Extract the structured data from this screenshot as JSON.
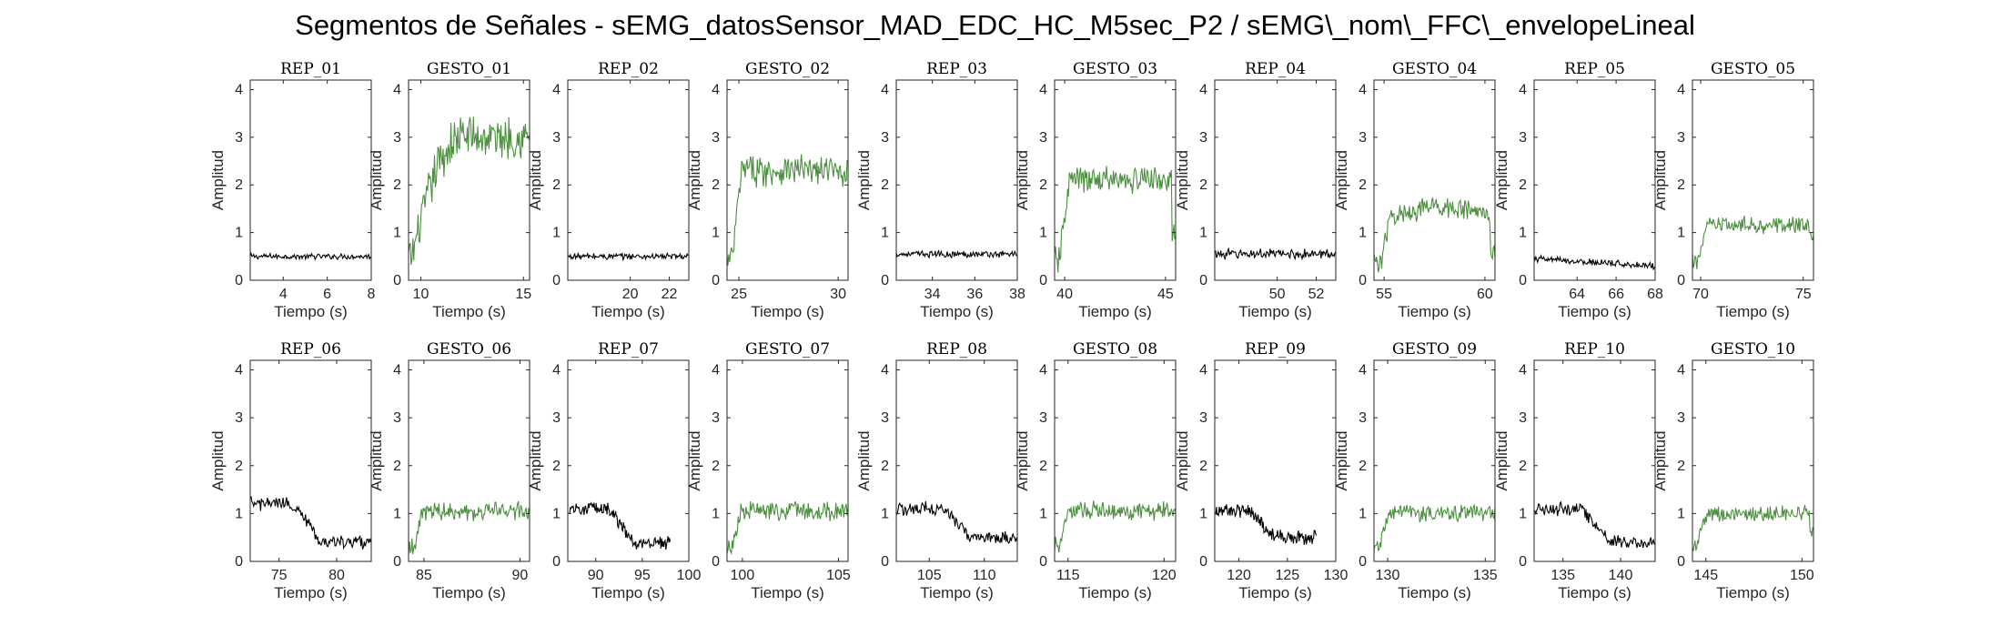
{
  "figure": {
    "title": "Segmentos de Señales - sEMG_datosSensor_MAD_EDC_HC_M5sec_P2 / sEMG\\_nom\\_FFC\\_envelopeLineal"
  },
  "colors": {
    "rep": "#000000",
    "gesto": "#4b8f3f",
    "axis": "#262626"
  },
  "chart_data": [
    {
      "type": "line",
      "title": "REP_01",
      "kind": "rep",
      "xlabel": "Tiempo (s)",
      "ylabel": "Amplitud",
      "xlim": [
        2.5,
        8
      ],
      "ylim": [
        0,
        4.2
      ],
      "xticks": [
        4,
        6,
        8
      ],
      "yticks": [
        0,
        1,
        2,
        3,
        4
      ],
      "shape": "flat",
      "level": 0.5,
      "noise": 0.05,
      "t0": 2.5,
      "t1": 8
    },
    {
      "type": "line",
      "title": "GESTO_01",
      "kind": "gesto",
      "xlabel": "Tiempo (s)",
      "ylabel": "Amplitud",
      "xlim": [
        9.4,
        15.3
      ],
      "ylim": [
        0,
        4.2
      ],
      "xticks": [
        10,
        15
      ],
      "yticks": [
        0,
        1,
        2,
        3,
        4
      ],
      "shape": "ramp",
      "level": 3.0,
      "start": 0.45,
      "noise": 0.4,
      "t0": 9.4,
      "t1": 15.3
    },
    {
      "type": "line",
      "title": "REP_02",
      "kind": "rep",
      "xlabel": "Tiempo (s)",
      "ylabel": "Amplitud",
      "xlim": [
        16.8,
        23
      ],
      "ylim": [
        0,
        4.2
      ],
      "xticks": [
        20,
        22
      ],
      "yticks": [
        0,
        1,
        2,
        3,
        4
      ],
      "shape": "flat",
      "level": 0.5,
      "noise": 0.06,
      "t0": 16.8,
      "t1": 23
    },
    {
      "type": "line",
      "title": "GESTO_02",
      "kind": "gesto",
      "xlabel": "Tiempo (s)",
      "ylabel": "Amplitud",
      "xlim": [
        24.4,
        30.5
      ],
      "ylim": [
        0,
        4.2
      ],
      "xticks": [
        25,
        30
      ],
      "yticks": [
        0,
        1,
        2,
        3,
        4
      ],
      "shape": "plateau",
      "level": 2.3,
      "start": 0.4,
      "noise": 0.28,
      "t0": 24.4,
      "t1": 30.5
    },
    {
      "type": "line",
      "title": "REP_03",
      "kind": "rep",
      "xlabel": "Tiempo (s)",
      "ylabel": "Amplitud",
      "xlim": [
        32.3,
        38
      ],
      "ylim": [
        0,
        4.2
      ],
      "xticks": [
        34,
        36,
        38
      ],
      "yticks": [
        0,
        1,
        2,
        3,
        4
      ],
      "shape": "flat",
      "level": 0.55,
      "noise": 0.06,
      "t0": 32.3,
      "t1": 38
    },
    {
      "type": "line",
      "title": "GESTO_03",
      "kind": "gesto",
      "xlabel": "Tiempo (s)",
      "ylabel": "Amplitud",
      "xlim": [
        39.5,
        45.5
      ],
      "ylim": [
        0,
        4.2
      ],
      "xticks": [
        40,
        45
      ],
      "yticks": [
        0,
        1,
        2,
        3,
        4
      ],
      "shape": "plateau",
      "level": 2.1,
      "start": 0.4,
      "end": 0.9,
      "noise": 0.25,
      "t0": 39.5,
      "t1": 45.5
    },
    {
      "type": "line",
      "title": "REP_04",
      "kind": "rep",
      "xlabel": "Tiempo (s)",
      "ylabel": "Amplitud",
      "xlim": [
        46.8,
        53
      ],
      "ylim": [
        0,
        4.2
      ],
      "xticks": [
        50,
        52
      ],
      "yticks": [
        0,
        1,
        2,
        3,
        4
      ],
      "shape": "flat",
      "level": 0.55,
      "noise": 0.09,
      "t0": 46.8,
      "t1": 53
    },
    {
      "type": "line",
      "title": "GESTO_04",
      "kind": "gesto",
      "xlabel": "Tiempo (s)",
      "ylabel": "Amplitud",
      "xlim": [
        54.5,
        60.5
      ],
      "ylim": [
        0,
        4.2
      ],
      "xticks": [
        55,
        60
      ],
      "yticks": [
        0,
        1,
        2,
        3,
        4
      ],
      "shape": "hump",
      "level": 1.55,
      "start": 0.4,
      "end": 0.6,
      "noise": 0.2,
      "t0": 54.5,
      "t1": 60.5
    },
    {
      "type": "line",
      "title": "REP_05",
      "kind": "rep",
      "xlabel": "Tiempo (s)",
      "ylabel": "Amplitud",
      "xlim": [
        61.8,
        68
      ],
      "ylim": [
        0,
        4.2
      ],
      "xticks": [
        64,
        66,
        68
      ],
      "yticks": [
        0,
        1,
        2,
        3,
        4
      ],
      "shape": "decay",
      "level": 0.45,
      "end": 0.3,
      "noise": 0.06,
      "t0": 61.8,
      "t1": 68
    },
    {
      "type": "line",
      "title": "GESTO_05",
      "kind": "gesto",
      "xlabel": "Tiempo (s)",
      "ylabel": "Amplitud",
      "xlim": [
        69.6,
        75.5
      ],
      "ylim": [
        0,
        4.2
      ],
      "xticks": [
        70,
        75
      ],
      "yticks": [
        0,
        1,
        2,
        3,
        4
      ],
      "shape": "plateau",
      "level": 1.15,
      "start": 0.4,
      "end": 0.9,
      "noise": 0.16,
      "t0": 69.6,
      "t1": 75.5
    },
    {
      "type": "line",
      "title": "REP_06",
      "kind": "rep",
      "xlabel": "Tiempo (s)",
      "ylabel": "Amplitud",
      "xlim": [
        72.5,
        83
      ],
      "ylim": [
        0,
        4.2
      ],
      "xticks": [
        75,
        80
      ],
      "yticks": [
        0,
        1,
        2,
        3,
        4
      ],
      "shape": "release",
      "level": 1.2,
      "end": 0.4,
      "drop": 76.2,
      "noise": 0.12,
      "t0": 72.5,
      "t1": 83
    },
    {
      "type": "line",
      "title": "GESTO_06",
      "kind": "gesto",
      "xlabel": "Tiempo (s)",
      "ylabel": "Amplitud",
      "xlim": [
        84.2,
        90.5
      ],
      "ylim": [
        0,
        4.2
      ],
      "xticks": [
        85,
        90
      ],
      "yticks": [
        0,
        1,
        2,
        3,
        4
      ],
      "shape": "plateau",
      "level": 1.05,
      "start": 0.3,
      "noise": 0.17,
      "t0": 84.2,
      "t1": 90.5
    },
    {
      "type": "line",
      "title": "REP_07",
      "kind": "rep",
      "xlabel": "Tiempo (s)",
      "ylabel": "Amplitud",
      "xlim": [
        87,
        100
      ],
      "ylim": [
        0,
        4.2
      ],
      "xticks": [
        90,
        95,
        100
      ],
      "yticks": [
        0,
        1,
        2,
        3,
        4
      ],
      "shape": "release",
      "level": 1.1,
      "end": 0.4,
      "drop": 91.5,
      "noise": 0.12,
      "t0": 87.2,
      "t1": 98
    },
    {
      "type": "line",
      "title": "GESTO_07",
      "kind": "gesto",
      "xlabel": "Tiempo (s)",
      "ylabel": "Amplitud",
      "xlim": [
        99.2,
        105.5
      ],
      "ylim": [
        0,
        4.2
      ],
      "xticks": [
        100,
        105
      ],
      "yticks": [
        0,
        1,
        2,
        3,
        4
      ],
      "shape": "plateau",
      "level": 1.05,
      "start": 0.3,
      "noise": 0.17,
      "t0": 99.2,
      "t1": 105.5
    },
    {
      "type": "line",
      "title": "REP_08",
      "kind": "rep",
      "xlabel": "Tiempo (s)",
      "ylabel": "Amplitud",
      "xlim": [
        102,
        113
      ],
      "ylim": [
        0,
        4.2
      ],
      "xticks": [
        105,
        110
      ],
      "yticks": [
        0,
        1,
        2,
        3,
        4
      ],
      "shape": "release",
      "level": 1.1,
      "end": 0.5,
      "drop": 106.3,
      "noise": 0.12,
      "t0": 102,
      "t1": 113
    },
    {
      "type": "line",
      "title": "GESTO_08",
      "kind": "gesto",
      "xlabel": "Tiempo (s)",
      "ylabel": "Amplitud",
      "xlim": [
        114.3,
        120.6
      ],
      "ylim": [
        0,
        4.2
      ],
      "xticks": [
        115,
        120
      ],
      "yticks": [
        0,
        1,
        2,
        3,
        4
      ],
      "shape": "plateau",
      "level": 1.05,
      "start": 0.3,
      "noise": 0.18,
      "t0": 114.3,
      "t1": 120.6
    },
    {
      "type": "line",
      "title": "REP_09",
      "kind": "rep",
      "xlabel": "Tiempo (s)",
      "ylabel": "Amplitud",
      "xlim": [
        117.5,
        130
      ],
      "ylim": [
        0,
        4.2
      ],
      "xticks": [
        120,
        125,
        130
      ],
      "yticks": [
        0,
        1,
        2,
        3,
        4
      ],
      "shape": "release",
      "level": 1.05,
      "end": 0.5,
      "drop": 121.2,
      "noise": 0.13,
      "t0": 117.6,
      "t1": 128
    },
    {
      "type": "line",
      "title": "GESTO_09",
      "kind": "gesto",
      "xlabel": "Tiempo (s)",
      "ylabel": "Amplitud",
      "xlim": [
        129.3,
        135.5
      ],
      "ylim": [
        0,
        4.2
      ],
      "xticks": [
        130,
        135
      ],
      "yticks": [
        0,
        1,
        2,
        3,
        4
      ],
      "shape": "plateau",
      "level": 1.0,
      "start": 0.3,
      "noise": 0.15,
      "t0": 129.3,
      "t1": 135.5
    },
    {
      "type": "line",
      "title": "REP_10",
      "kind": "rep",
      "xlabel": "Tiempo (s)",
      "ylabel": "Amplitud",
      "xlim": [
        132.5,
        143
      ],
      "ylim": [
        0,
        4.2
      ],
      "xticks": [
        135,
        140
      ],
      "yticks": [
        0,
        1,
        2,
        3,
        4
      ],
      "shape": "release",
      "level": 1.1,
      "end": 0.4,
      "drop": 136.6,
      "noise": 0.12,
      "t0": 132.5,
      "t1": 143
    },
    {
      "type": "line",
      "title": "GESTO_10",
      "kind": "gesto",
      "xlabel": "Tiempo (s)",
      "ylabel": "Amplitud",
      "xlim": [
        144.3,
        150.6
      ],
      "ylim": [
        0,
        4.2
      ],
      "xticks": [
        145,
        150
      ],
      "yticks": [
        0,
        1,
        2,
        3,
        4
      ],
      "shape": "plateau",
      "level": 1.0,
      "start": 0.35,
      "end": 0.7,
      "noise": 0.15,
      "t0": 144.3,
      "t1": 150.6
    }
  ]
}
